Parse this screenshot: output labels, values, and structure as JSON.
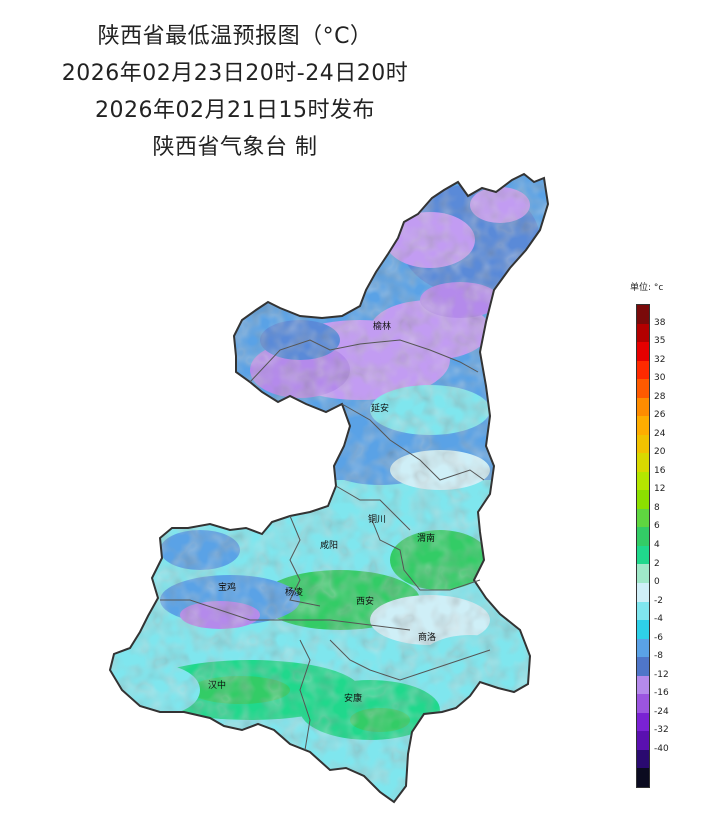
{
  "titles": {
    "line1": "陕西省最低温预报图（°C）",
    "line2": "2026年02月23日20时-24日20时",
    "line3": "2026年02月21日15时发布",
    "line4": "陕西省气象台 制"
  },
  "legend": {
    "unit_label": "单位: °c",
    "ticks": [
      "38",
      "35",
      "32",
      "30",
      "28",
      "26",
      "24",
      "20",
      "16",
      "12",
      "8",
      "6",
      "4",
      "2",
      "0",
      "-2",
      "-4",
      "-6",
      "-8",
      "-12",
      "-16",
      "-24",
      "-32",
      "-40"
    ],
    "colors": [
      "#7a0a0a",
      "#b30000",
      "#e60000",
      "#ff2a00",
      "#ff5a00",
      "#ff8c00",
      "#ffad00",
      "#f2c200",
      "#d9d900",
      "#b4e600",
      "#8ce000",
      "#5fd640",
      "#33cc66",
      "#20d88c",
      "#9fe8c8",
      "#cfeff7",
      "#7fe6ee",
      "#2ed0e8",
      "#5aa2e6",
      "#4f76c8",
      "#b48aeb",
      "#9b55e0",
      "#7a22d4",
      "#5a10b0",
      "#2a0a70",
      "#0b0b20"
    ]
  },
  "cities": [
    {
      "name": "榆林"
    },
    {
      "name": "延安"
    },
    {
      "name": "铜川"
    },
    {
      "name": "咸阳"
    },
    {
      "name": "渭南"
    },
    {
      "name": "宝鸡"
    },
    {
      "name": "杨凌"
    },
    {
      "name": "西安"
    },
    {
      "name": "商洛"
    },
    {
      "name": "汉中"
    },
    {
      "name": "安康"
    }
  ]
}
